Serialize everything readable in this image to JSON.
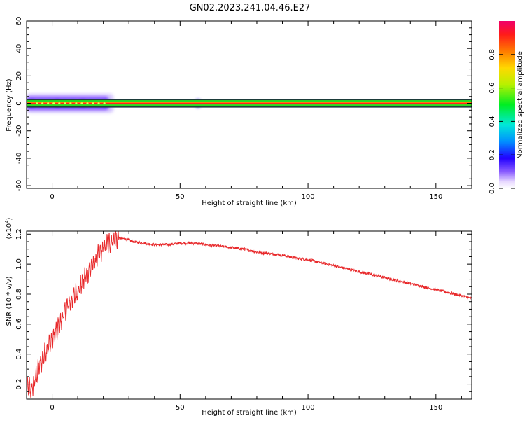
{
  "figure_title": "GN02.2023.241.04.46.E27",
  "colorbar": {
    "label": "Normalized spectral amplitude",
    "ticks": [
      "0.0",
      "0.2",
      "0.4",
      "0.6",
      "0.8"
    ],
    "tick_values": [
      0.0,
      0.2,
      0.4,
      0.6,
      0.8
    ],
    "range": [
      0,
      1
    ]
  },
  "chart_data": [
    {
      "type": "heatmap",
      "title": "",
      "xlabel": "Height of straight line (km)",
      "ylabel": "Frequency (Hz)",
      "xlim": [
        -10,
        164
      ],
      "ylim": [
        -62,
        60
      ],
      "x_ticks": [
        "0",
        "50",
        "100",
        "150"
      ],
      "x_tick_values": [
        0,
        50,
        100,
        150
      ],
      "y_ticks": [
        "60",
        "40",
        "20",
        "0",
        "-20",
        "-40",
        "-60"
      ],
      "y_tick_values": [
        60,
        40,
        20,
        0,
        -20,
        -40,
        -60
      ],
      "band": {
        "center_hz": 0,
        "halfwidth_hz": 1.5,
        "broad_region_km": [
          -10,
          24
        ],
        "broad_halfwidth_hz": 5,
        "secondary_blob_km": 57
      }
    },
    {
      "type": "line",
      "title": "",
      "xlabel": "Height of straight line (km)",
      "ylabel": "SNR (10 * v/v)",
      "scale_label": "(x10",
      "scale_exp": "4",
      "scale_close": ")",
      "xlim": [
        -10,
        164
      ],
      "ylim": [
        0.1,
        1.22
      ],
      "x_ticks": [
        "0",
        "50",
        "100",
        "150"
      ],
      "x_tick_values": [
        0,
        50,
        100,
        150
      ],
      "y_ticks": [
        "0.2",
        "0.4",
        "0.6",
        "0.8",
        "1.0",
        "1.2"
      ],
      "y_tick_values": [
        0.2,
        0.4,
        0.6,
        0.8,
        1.0,
        1.2
      ],
      "series": [
        {
          "name": "SNR",
          "color": "#e8292b",
          "x": [
            -10,
            -8,
            -5,
            -2,
            0,
            3,
            6,
            10,
            13,
            16,
            19,
            22,
            25,
            28,
            32,
            36,
            40,
            45,
            50,
            55,
            60,
            65,
            70,
            75,
            80,
            85,
            90,
            95,
            100,
            105,
            110,
            115,
            120,
            125,
            130,
            135,
            140,
            145,
            150,
            155,
            160,
            164
          ],
          "values": [
            0.2,
            0.16,
            0.32,
            0.44,
            0.5,
            0.6,
            0.72,
            0.82,
            0.92,
            1.0,
            1.08,
            1.14,
            1.17,
            1.17,
            1.15,
            1.14,
            1.13,
            1.13,
            1.14,
            1.14,
            1.13,
            1.12,
            1.11,
            1.1,
            1.08,
            1.07,
            1.06,
            1.04,
            1.03,
            1.01,
            0.99,
            0.97,
            0.95,
            0.93,
            0.91,
            0.89,
            0.87,
            0.85,
            0.83,
            0.81,
            0.79,
            0.77
          ]
        }
      ]
    }
  ]
}
